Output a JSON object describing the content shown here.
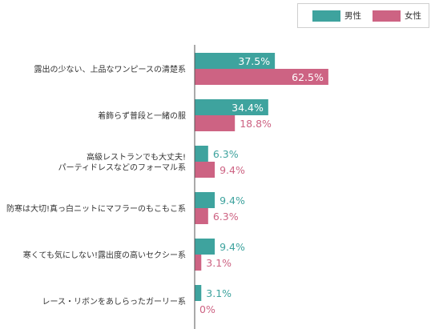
{
  "colors": {
    "male": "#3ea39e",
    "female": "#cd6383",
    "axis": "#555555",
    "label": "#333333"
  },
  "legend": {
    "male": "男性",
    "female": "女性"
  },
  "chart_data": {
    "type": "bar",
    "orientation": "horizontal",
    "title": "",
    "xlabel": "",
    "ylabel": "",
    "xlim": [
      0,
      100
    ],
    "legend_position": "top-right",
    "grid": false,
    "categories": [
      [
        "露出の少ない、上品なワンピースの清楚系"
      ],
      [
        "着飾らず普段と一緒の服"
      ],
      [
        "高級レストランでも大丈夫!",
        "パーティドレスなどのフォーマル系"
      ],
      [
        "防寒は大切!真っ白ニットにマフラーのもこもこ系"
      ],
      [
        "寒くても気にしない!露出度の高いセクシー系"
      ],
      [
        "レース・リボンをあしらったガーリー系"
      ]
    ],
    "series": [
      {
        "name": "男性",
        "values": [
          37.5,
          34.4,
          6.3,
          9.4,
          9.4,
          3.1
        ],
        "labels": [
          "37.5%",
          "34.4%",
          "6.3%",
          "9.4%",
          "9.4%",
          "3.1%"
        ]
      },
      {
        "name": "女性",
        "values": [
          62.5,
          18.8,
          9.4,
          6.3,
          3.1,
          0
        ],
        "labels": [
          "62.5%",
          "18.8%",
          "9.4%",
          "6.3%",
          "3.1%",
          "0%"
        ]
      }
    ]
  }
}
